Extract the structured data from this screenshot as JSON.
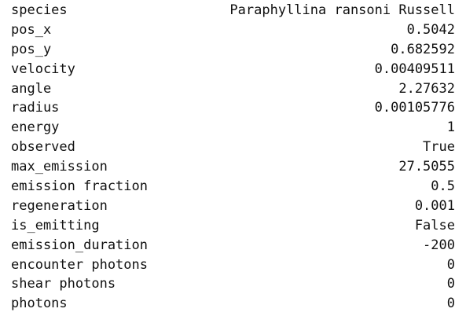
{
  "series_output": {
    "rows": [
      {
        "key": "species",
        "value": "Paraphyllina ransoni Russell"
      },
      {
        "key": "pos_x",
        "value": "0.5042"
      },
      {
        "key": "pos_y",
        "value": "0.682592"
      },
      {
        "key": "velocity",
        "value": "0.00409511"
      },
      {
        "key": "angle",
        "value": "2.27632"
      },
      {
        "key": "radius",
        "value": "0.00105776"
      },
      {
        "key": "energy",
        "value": "1"
      },
      {
        "key": "observed",
        "value": "True"
      },
      {
        "key": "max_emission",
        "value": "27.5055"
      },
      {
        "key": "emission fraction",
        "value": "0.5"
      },
      {
        "key": "regeneration",
        "value": "0.001"
      },
      {
        "key": "is_emitting",
        "value": "False"
      },
      {
        "key": "emission_duration",
        "value": "-200"
      },
      {
        "key": "encounter photons",
        "value": "0"
      },
      {
        "key": "shear photons",
        "value": "0"
      },
      {
        "key": "photons",
        "value": "0"
      }
    ]
  }
}
